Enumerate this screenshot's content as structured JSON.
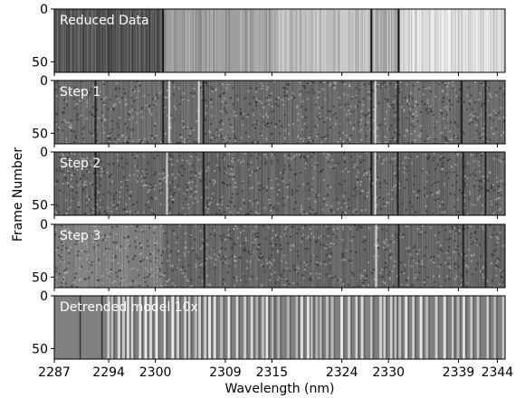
{
  "chart_data": {
    "type": "heatmap",
    "xlabel": "Wavelength (nm)",
    "ylabel": "Frame Number",
    "xlim": [
      2287,
      2345
    ],
    "x_ticks": [
      "2287",
      "2294",
      "2300",
      "2309",
      "2315",
      "2324",
      "2330",
      "2339",
      "2344"
    ],
    "x_tick_values": [
      2287,
      2294,
      2300,
      2309,
      2315,
      2324,
      2330,
      2339,
      2344
    ],
    "y_ticks": [
      "0",
      "50"
    ],
    "y_tick_values": [
      0,
      50
    ],
    "ylim": [
      0,
      60
    ],
    "colormap": "grayscale",
    "panels": [
      {
        "label": "Reduced Data",
        "style": "reduced",
        "segments": [
          {
            "x": [
              2287,
              2301
            ],
            "tone": 0.33
          },
          {
            "x": [
              2301,
              2315.5
            ],
            "tone": 0.62
          },
          {
            "x": [
              2315.5,
              2328
            ],
            "tone": 0.74
          },
          {
            "x": [
              2328,
              2331.5
            ],
            "tone": 0.7
          },
          {
            "x": [
              2331.5,
              2345
            ],
            "tone": 0.86
          }
        ],
        "dark_lines": [
          2301,
          2327.8,
          2331.3
        ]
      },
      {
        "label": "Step 1",
        "style": "noise",
        "base_tone": 0.42,
        "dark_lines": [
          2292.3,
          2301,
          2306.2,
          2327.8,
          2331.2,
          2339.4,
          2342.5
        ],
        "bright_lines": [
          2301.8,
          2305.6,
          2328.3
        ]
      },
      {
        "label": "Step 2",
        "style": "noise",
        "base_tone": 0.4,
        "dark_lines": [
          2292.3,
          2306.2,
          2327.8,
          2331.2,
          2339.6,
          2342.5
        ],
        "bright_lines": [
          2301.5,
          2328.3
        ]
      },
      {
        "label": "Step 3",
        "style": "step3",
        "base_tone": 0.4,
        "bright_region": [
          2287,
          2301
        ],
        "bright_region_tone": 0.62,
        "dark_lines": [
          2306.3,
          2331.3,
          2339.6,
          2342.5
        ],
        "bright_lines": [
          2328.4
        ]
      },
      {
        "label": "Detrended model 10x",
        "style": "model",
        "base_tone": 0.5,
        "line_start": 2293.8,
        "dark_lines": [
          2290.3,
          2293.1
        ]
      }
    ]
  }
}
